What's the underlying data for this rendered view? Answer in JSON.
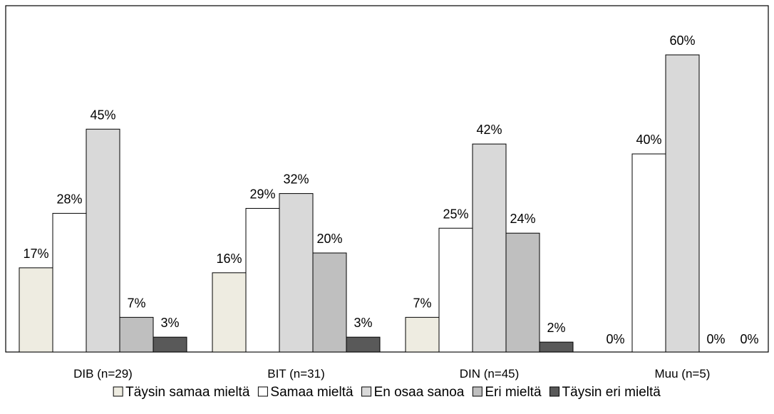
{
  "chart_data": {
    "type": "bar",
    "title": "",
    "xlabel": "",
    "ylabel": "",
    "ylim": [
      0,
      0.65
    ],
    "grid": false,
    "legend_position": "bottom",
    "categories": [
      "DIB (n=29)",
      "BIT (n=31)",
      "DIN (n=45)",
      "Muu (n=5)"
    ],
    "series": [
      {
        "name": "Täysin samaa mieltä",
        "color": "#eeece1",
        "values": [
          0.17,
          0.16,
          0.07,
          0.0
        ],
        "labels": [
          "17%",
          "16%",
          "7%",
          "0%"
        ]
      },
      {
        "name": "Samaa mieltä",
        "color": "#ffffff",
        "values": [
          0.28,
          0.29,
          0.25,
          0.4
        ],
        "labels": [
          "28%",
          "29%",
          "25%",
          "40%"
        ]
      },
      {
        "name": "En osaa sanoa",
        "color": "#d9d9d9",
        "values": [
          0.45,
          0.32,
          0.42,
          0.6
        ],
        "labels": [
          "45%",
          "32%",
          "42%",
          "60%"
        ]
      },
      {
        "name": "Eri mieltä",
        "color": "#bfbfbf",
        "values": [
          0.07,
          0.2,
          0.24,
          0.0
        ],
        "labels": [
          "7%",
          "20%",
          "24%",
          "0%"
        ]
      },
      {
        "name": "Täysin eri mieltä",
        "color": "#595959",
        "values": [
          0.03,
          0.03,
          0.02,
          0.0
        ],
        "labels": [
          "3%",
          "3%",
          "2%",
          "0%"
        ]
      }
    ]
  }
}
